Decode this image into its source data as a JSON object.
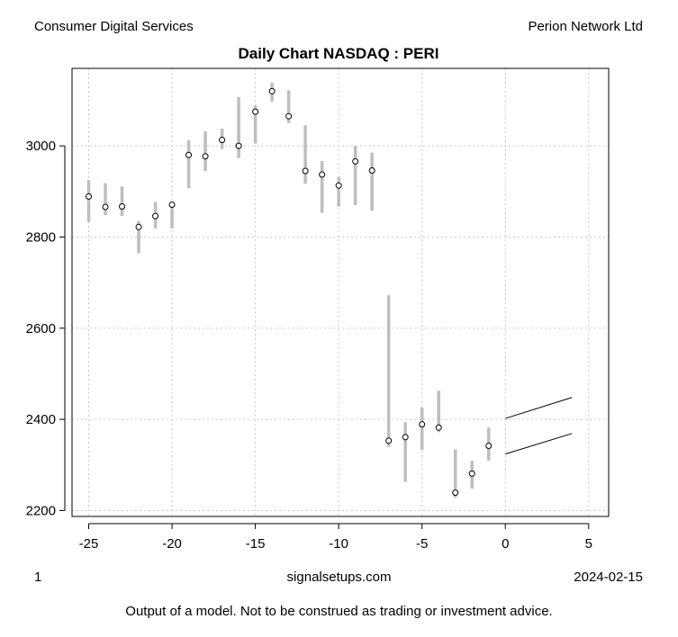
{
  "header": {
    "left": "Consumer Digital Services",
    "right": "Perion Network Ltd"
  },
  "footer": {
    "left": "1",
    "center": "signalsetups.com",
    "right": "2024-02-15",
    "disclaimer": "Output of a model. Not to be construed as trading or investment advice."
  },
  "chart_data": {
    "type": "candlestick",
    "title": "Daily Chart NASDAQ : PERI",
    "xlabel": "",
    "ylabel": "",
    "xlim": [
      -26,
      6.2
    ],
    "ylim": [
      2187,
      3170
    ],
    "xticks": [
      -25,
      -20,
      -15,
      -10,
      -5,
      0,
      5
    ],
    "yticks": [
      2200,
      2400,
      2600,
      2800,
      3000
    ],
    "grid": true,
    "bars": [
      {
        "x": -25,
        "high": 2925,
        "low": 2833,
        "close": 2889
      },
      {
        "x": -24,
        "high": 2918,
        "low": 2848,
        "close": 2866
      },
      {
        "x": -23,
        "high": 2911,
        "low": 2846,
        "close": 2867
      },
      {
        "x": -22,
        "high": 2835,
        "low": 2764,
        "close": 2822
      },
      {
        "x": -21,
        "high": 2877,
        "low": 2819,
        "close": 2846
      },
      {
        "x": -20,
        "high": 2874,
        "low": 2819,
        "close": 2871
      },
      {
        "x": -19,
        "high": 3012,
        "low": 2907,
        "close": 2980
      },
      {
        "x": -18,
        "high": 3032,
        "low": 2945,
        "close": 2977
      },
      {
        "x": -17,
        "high": 3038,
        "low": 2993,
        "close": 3013
      },
      {
        "x": -16,
        "high": 3107,
        "low": 2973,
        "close": 3000
      },
      {
        "x": -15,
        "high": 3088,
        "low": 3005,
        "close": 3075
      },
      {
        "x": -14,
        "high": 3139,
        "low": 3097,
        "close": 3120
      },
      {
        "x": -13,
        "high": 3122,
        "low": 3050,
        "close": 3065
      },
      {
        "x": -12,
        "high": 3045,
        "low": 2917,
        "close": 2945
      },
      {
        "x": -11,
        "high": 2967,
        "low": 2853,
        "close": 2937
      },
      {
        "x": -10,
        "high": 2932,
        "low": 2867,
        "close": 2913
      },
      {
        "x": -9,
        "high": 3000,
        "low": 2870,
        "close": 2966
      },
      {
        "x": -8,
        "high": 2985,
        "low": 2858,
        "close": 2946
      },
      {
        "x": -7,
        "high": 2672,
        "low": 2340,
        "close": 2353
      },
      {
        "x": -6,
        "high": 2394,
        "low": 2263,
        "close": 2361
      },
      {
        "x": -5,
        "high": 2426,
        "low": 2333,
        "close": 2389
      },
      {
        "x": -4,
        "high": 2463,
        "low": 2372,
        "close": 2382
      },
      {
        "x": -3,
        "high": 2334,
        "low": 2228,
        "close": 2239
      },
      {
        "x": -2,
        "high": 2309,
        "low": 2248,
        "close": 2281
      },
      {
        "x": -1,
        "high": 2382,
        "low": 2309,
        "close": 2342
      }
    ],
    "projection_lines": [
      {
        "x": [
          0,
          4
        ],
        "y": [
          2402,
          2448
        ]
      },
      {
        "x": [
          0,
          4
        ],
        "y": [
          2324,
          2369
        ]
      }
    ],
    "colors": {
      "bar": "#bebebe",
      "close_marker_fill": "#ffffff",
      "close_marker_stroke": "#000000",
      "projection": "#000000",
      "grid": "#c8c8c8"
    }
  }
}
